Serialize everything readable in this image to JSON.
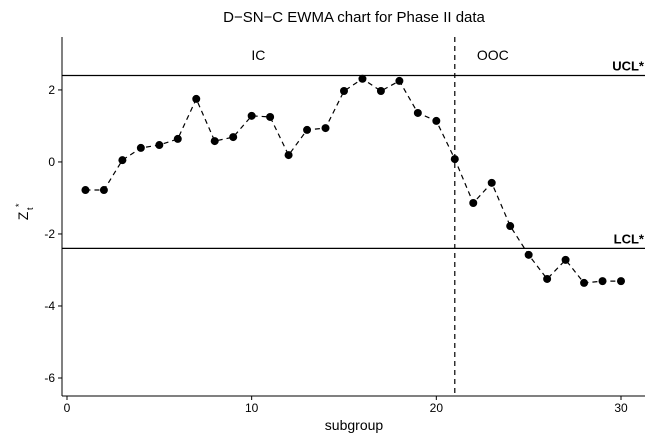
{
  "chart_data": {
    "type": "line",
    "title": "D−SN−C EWMA chart for Phase II data",
    "xlabel": "subgroup",
    "ylabel": {
      "base": "Z",
      "sup": "*",
      "sub": "t"
    },
    "x": [
      1,
      2,
      3,
      4,
      5,
      6,
      7,
      8,
      9,
      10,
      11,
      12,
      13,
      14,
      15,
      16,
      17,
      18,
      19,
      20,
      21,
      22,
      23,
      24,
      25,
      26,
      27,
      28,
      29,
      30
    ],
    "values": [
      -0.78,
      -0.78,
      0.05,
      0.39,
      0.47,
      0.64,
      1.75,
      0.58,
      0.69,
      1.28,
      1.25,
      0.19,
      0.89,
      0.94,
      1.97,
      2.31,
      1.97,
      2.25,
      1.36,
      1.14,
      0.08,
      -1.14,
      -0.58,
      -1.78,
      -2.58,
      -3.25,
      -2.72,
      -3.36,
      -3.31,
      -3.31
    ],
    "color": "#000000",
    "xlim": [
      -0.27,
      31.3
    ],
    "xticks": [
      0,
      10,
      20,
      30
    ],
    "ylim": [
      -6.5,
      3.47
    ],
    "yticks": [
      -6,
      -4,
      -2,
      0,
      2
    ],
    "ucl": 2.4,
    "ucl_label": "UCL*",
    "lcl": -2.4,
    "lcl_label": "LCL*",
    "change_point": 21,
    "region_labels": [
      "IC",
      "OOC"
    ]
  }
}
